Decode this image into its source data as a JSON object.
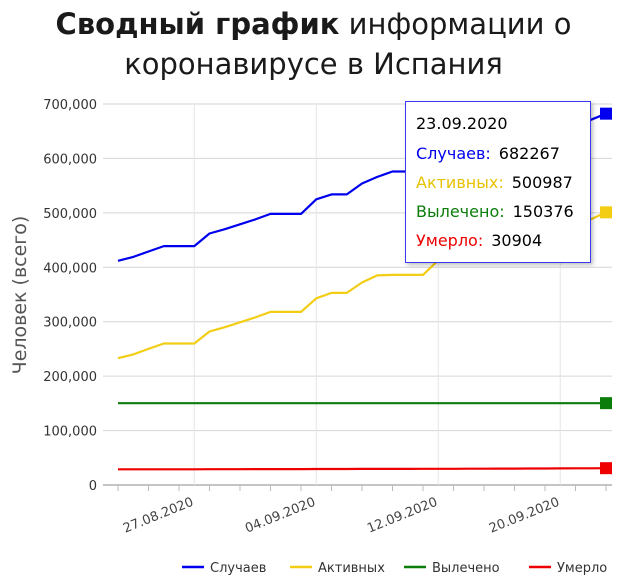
{
  "title": {
    "bold": "Сводный график",
    "rest_line1": " информации о",
    "line2": "коронавирусе в Испания"
  },
  "chart_data": {
    "type": "line",
    "ylabel": "Человек (всего)",
    "ylim": [
      0,
      700000
    ],
    "yticks": [
      "700,000",
      "600,000",
      "500,000",
      "400,000",
      "300,000",
      "200,000",
      "100,000",
      "0"
    ],
    "ytick_values": [
      700000,
      600000,
      500000,
      400000,
      300000,
      200000,
      100000,
      0
    ],
    "xticks": [
      "27.08.2020",
      "04.09.2020",
      "12.09.2020",
      "20.09.2020"
    ],
    "xtick_dates": [
      "2020-08-27",
      "2020-09-04",
      "2020-09-12",
      "2020-09-20"
    ],
    "x": [
      "2020-08-22",
      "2020-08-23",
      "2020-08-24",
      "2020-08-25",
      "2020-08-26",
      "2020-08-27",
      "2020-08-28",
      "2020-08-29",
      "2020-08-30",
      "2020-08-31",
      "2020-09-01",
      "2020-09-02",
      "2020-09-03",
      "2020-09-04",
      "2020-09-05",
      "2020-09-06",
      "2020-09-07",
      "2020-09-08",
      "2020-09-09",
      "2020-09-10",
      "2020-09-11",
      "2020-09-12",
      "2020-09-13",
      "2020-09-14",
      "2020-09-15",
      "2020-09-16",
      "2020-09-17",
      "2020-09-18",
      "2020-09-19",
      "2020-09-20",
      "2020-09-21",
      "2020-09-22",
      "2020-09-23"
    ],
    "series": [
      {
        "name": "Случаев",
        "color": "#0000ee",
        "values": [
          412000,
          419000,
          429000,
          439000,
          439000,
          439000,
          462000,
          470000,
          479000,
          488000,
          498000,
          498000,
          498000,
          525000,
          534000,
          534000,
          554000,
          566000,
          576000,
          576000,
          576000,
          603000,
          614000,
          614000,
          627000,
          640000,
          640000,
          640000,
          640000,
          659000,
          671000,
          671000,
          682267
        ]
      },
      {
        "name": "Активных",
        "color": "#f2cd14",
        "values": [
          233000,
          240000,
          250000,
          260000,
          260000,
          260000,
          282000,
          290000,
          299000,
          308000,
          318000,
          318000,
          318000,
          343000,
          353000,
          353000,
          372000,
          385000,
          386000,
          386000,
          386000,
          413000,
          424000,
          424000,
          437000,
          450000,
          450000,
          450000,
          450000,
          475000,
          488000,
          488000,
          500987
        ]
      },
      {
        "name": "Вылечено",
        "color": "#0a7d0a",
        "values": [
          150376,
          150376,
          150376,
          150376,
          150376,
          150376,
          150376,
          150376,
          150376,
          150376,
          150376,
          150376,
          150376,
          150376,
          150376,
          150376,
          150376,
          150376,
          150376,
          150376,
          150376,
          150376,
          150376,
          150376,
          150376,
          150376,
          150376,
          150376,
          150376,
          150376,
          150376,
          150376,
          150376
        ]
      },
      {
        "name": "Умерло",
        "color": "#ee0000",
        "values": [
          28800,
          28800,
          28850,
          28850,
          28900,
          28900,
          29000,
          29050,
          29100,
          29150,
          29200,
          29250,
          29300,
          29350,
          29400,
          29450,
          29500,
          29550,
          29600,
          29650,
          29700,
          29750,
          29800,
          29900,
          30000,
          30100,
          30200,
          30300,
          30400,
          30500,
          30650,
          30750,
          30904
        ]
      }
    ]
  },
  "tooltip": {
    "date": "23.09.2020",
    "rows": [
      {
        "label": "Случаев:",
        "value": "682267",
        "color": "#0000ee"
      },
      {
        "label": "Активных:",
        "value": "500987",
        "color": "#e6c200"
      },
      {
        "label": "Вылечено:",
        "value": "150376",
        "color": "#0a7d0a"
      },
      {
        "label": "Умерло:",
        "value": "30904",
        "color": "#ee0000"
      }
    ]
  }
}
